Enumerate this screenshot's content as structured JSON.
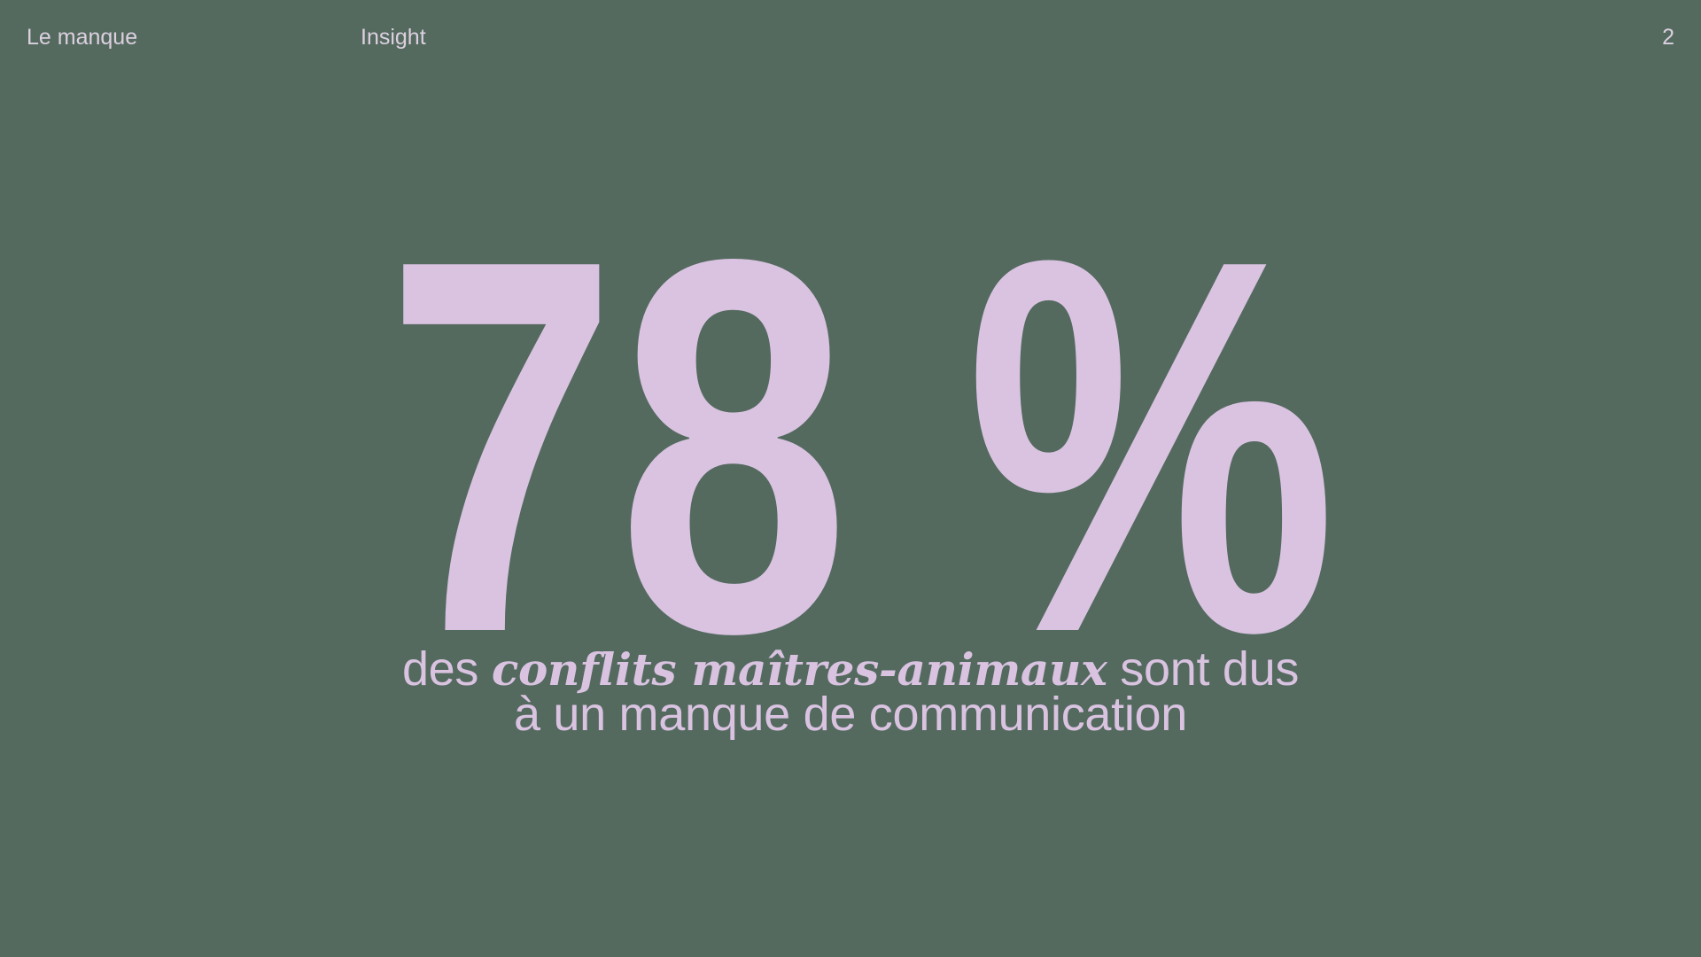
{
  "header": {
    "section_label": "Le manque",
    "category_label": "Insight",
    "page_number": "2"
  },
  "stat": {
    "value": "78 %"
  },
  "statement": {
    "line1_before": "des",
    "line1_emphasis": "conflits maîtres-animaux",
    "line1_after": "sont dus",
    "line2": "à un manque de communication"
  },
  "colors": {
    "background": "#546a5e",
    "accent": "#d9c3e1"
  }
}
